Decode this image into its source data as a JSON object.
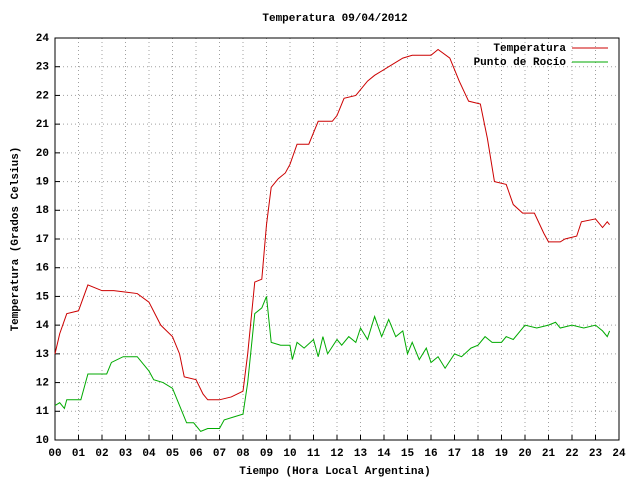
{
  "chart_data": {
    "type": "line",
    "title": "Temperatura 09/04/2012",
    "x_label": "Tiempo (Hora Local Argentina)",
    "y_label": "Temperatura (Grados Celsius)",
    "xlim": [
      0,
      24
    ],
    "ylim": [
      10,
      24
    ],
    "xticks": [
      {
        "value": 0,
        "label": "00"
      },
      {
        "value": 1,
        "label": "01"
      },
      {
        "value": 2,
        "label": "02"
      },
      {
        "value": 3,
        "label": "03"
      },
      {
        "value": 4,
        "label": "04"
      },
      {
        "value": 5,
        "label": "05"
      },
      {
        "value": 6,
        "label": "06"
      },
      {
        "value": 7,
        "label": "07"
      },
      {
        "value": 8,
        "label": "08"
      },
      {
        "value": 9,
        "label": "09"
      },
      10,
      11,
      12,
      13,
      14,
      15,
      16,
      17,
      18,
      19,
      20,
      21,
      22,
      23,
      24
    ],
    "yticks": [
      10,
      11,
      12,
      13,
      14,
      15,
      16,
      17,
      18,
      19,
      20,
      21,
      22,
      23,
      24
    ],
    "grid": true,
    "legend": "top-right",
    "series": [
      {
        "name": "Temperatura",
        "color": "#cc0000",
        "x": [
          0,
          0.2,
          0.5,
          1.0,
          1.4,
          2.0,
          2.5,
          3.5,
          4.0,
          4.5,
          5.0,
          5.3,
          5.5,
          6.0,
          6.3,
          6.5,
          7.0,
          7.5,
          8.0,
          8.2,
          8.5,
          8.8,
          9.0,
          9.2,
          9.5,
          9.8,
          10.0,
          10.3,
          10.8,
          11.2,
          11.8,
          12.0,
          12.3,
          12.8,
          13.3,
          13.6,
          14.2,
          14.8,
          15.2,
          16.0,
          16.3,
          16.8,
          17.2,
          17.6,
          18.1,
          18.4,
          18.7,
          19.2,
          19.5,
          19.9,
          20.4,
          20.8,
          21.0,
          21.5,
          21.7,
          22.2,
          22.4,
          23.0,
          23.3,
          23.5,
          23.6
        ],
        "values": [
          13.0,
          13.7,
          14.4,
          14.5,
          15.4,
          15.2,
          15.2,
          15.1,
          14.8,
          14.0,
          13.6,
          13.0,
          12.2,
          12.1,
          11.6,
          11.4,
          11.4,
          11.5,
          11.7,
          13.0,
          15.5,
          15.6,
          17.5,
          18.8,
          19.1,
          19.3,
          19.6,
          20.3,
          20.3,
          21.1,
          21.1,
          21.3,
          21.9,
          22.0,
          22.5,
          22.7,
          23.0,
          23.3,
          23.4,
          23.4,
          23.6,
          23.3,
          22.5,
          21.8,
          21.7,
          20.5,
          19.0,
          18.9,
          18.2,
          17.9,
          17.9,
          17.2,
          16.9,
          16.9,
          17.0,
          17.1,
          17.6,
          17.7,
          17.4,
          17.6,
          17.5
        ]
      },
      {
        "name": "Punto de Rocío",
        "color": "#00aa00",
        "x": [
          0,
          0.2,
          0.4,
          0.5,
          1.1,
          1.4,
          2.2,
          2.4,
          2.9,
          3.5,
          3.8,
          4.0,
          4.2,
          4.6,
          5.0,
          5.2,
          5.4,
          5.6,
          5.9,
          6.2,
          6.5,
          7.0,
          7.2,
          7.6,
          8.0,
          8.2,
          8.5,
          8.8,
          9.0,
          9.1,
          9.2,
          9.6,
          10.0,
          10.1,
          10.3,
          10.6,
          11.0,
          11.2,
          11.4,
          11.6,
          12.0,
          12.2,
          12.5,
          12.8,
          13.0,
          13.3,
          13.6,
          13.9,
          14.2,
          14.5,
          14.8,
          15.0,
          15.2,
          15.5,
          15.8,
          16.0,
          16.3,
          16.6,
          17.0,
          17.3,
          17.7,
          18.0,
          18.3,
          18.6,
          19.0,
          19.2,
          19.5,
          19.8,
          20.0,
          20.5,
          21.0,
          21.3,
          21.5,
          22.0,
          22.5,
          23.0,
          23.3,
          23.5,
          23.6
        ],
        "values": [
          11.2,
          11.3,
          11.1,
          11.4,
          11.4,
          12.3,
          12.3,
          12.7,
          12.9,
          12.9,
          12.6,
          12.4,
          12.1,
          12.0,
          11.8,
          11.4,
          11.0,
          10.6,
          10.6,
          10.3,
          10.4,
          10.4,
          10.7,
          10.8,
          10.9,
          12.0,
          14.4,
          14.6,
          15.0,
          14.2,
          13.4,
          13.3,
          13.3,
          12.8,
          13.4,
          13.2,
          13.5,
          12.9,
          13.6,
          13.0,
          13.5,
          13.3,
          13.6,
          13.4,
          13.9,
          13.5,
          14.3,
          13.6,
          14.2,
          13.6,
          13.8,
          13.0,
          13.4,
          12.8,
          13.2,
          12.7,
          12.9,
          12.5,
          13.0,
          12.9,
          13.2,
          13.3,
          13.6,
          13.4,
          13.4,
          13.6,
          13.5,
          13.8,
          14.0,
          13.9,
          14.0,
          14.1,
          13.9,
          14.0,
          13.9,
          14.0,
          13.8,
          13.6,
          13.8
        ]
      }
    ]
  }
}
